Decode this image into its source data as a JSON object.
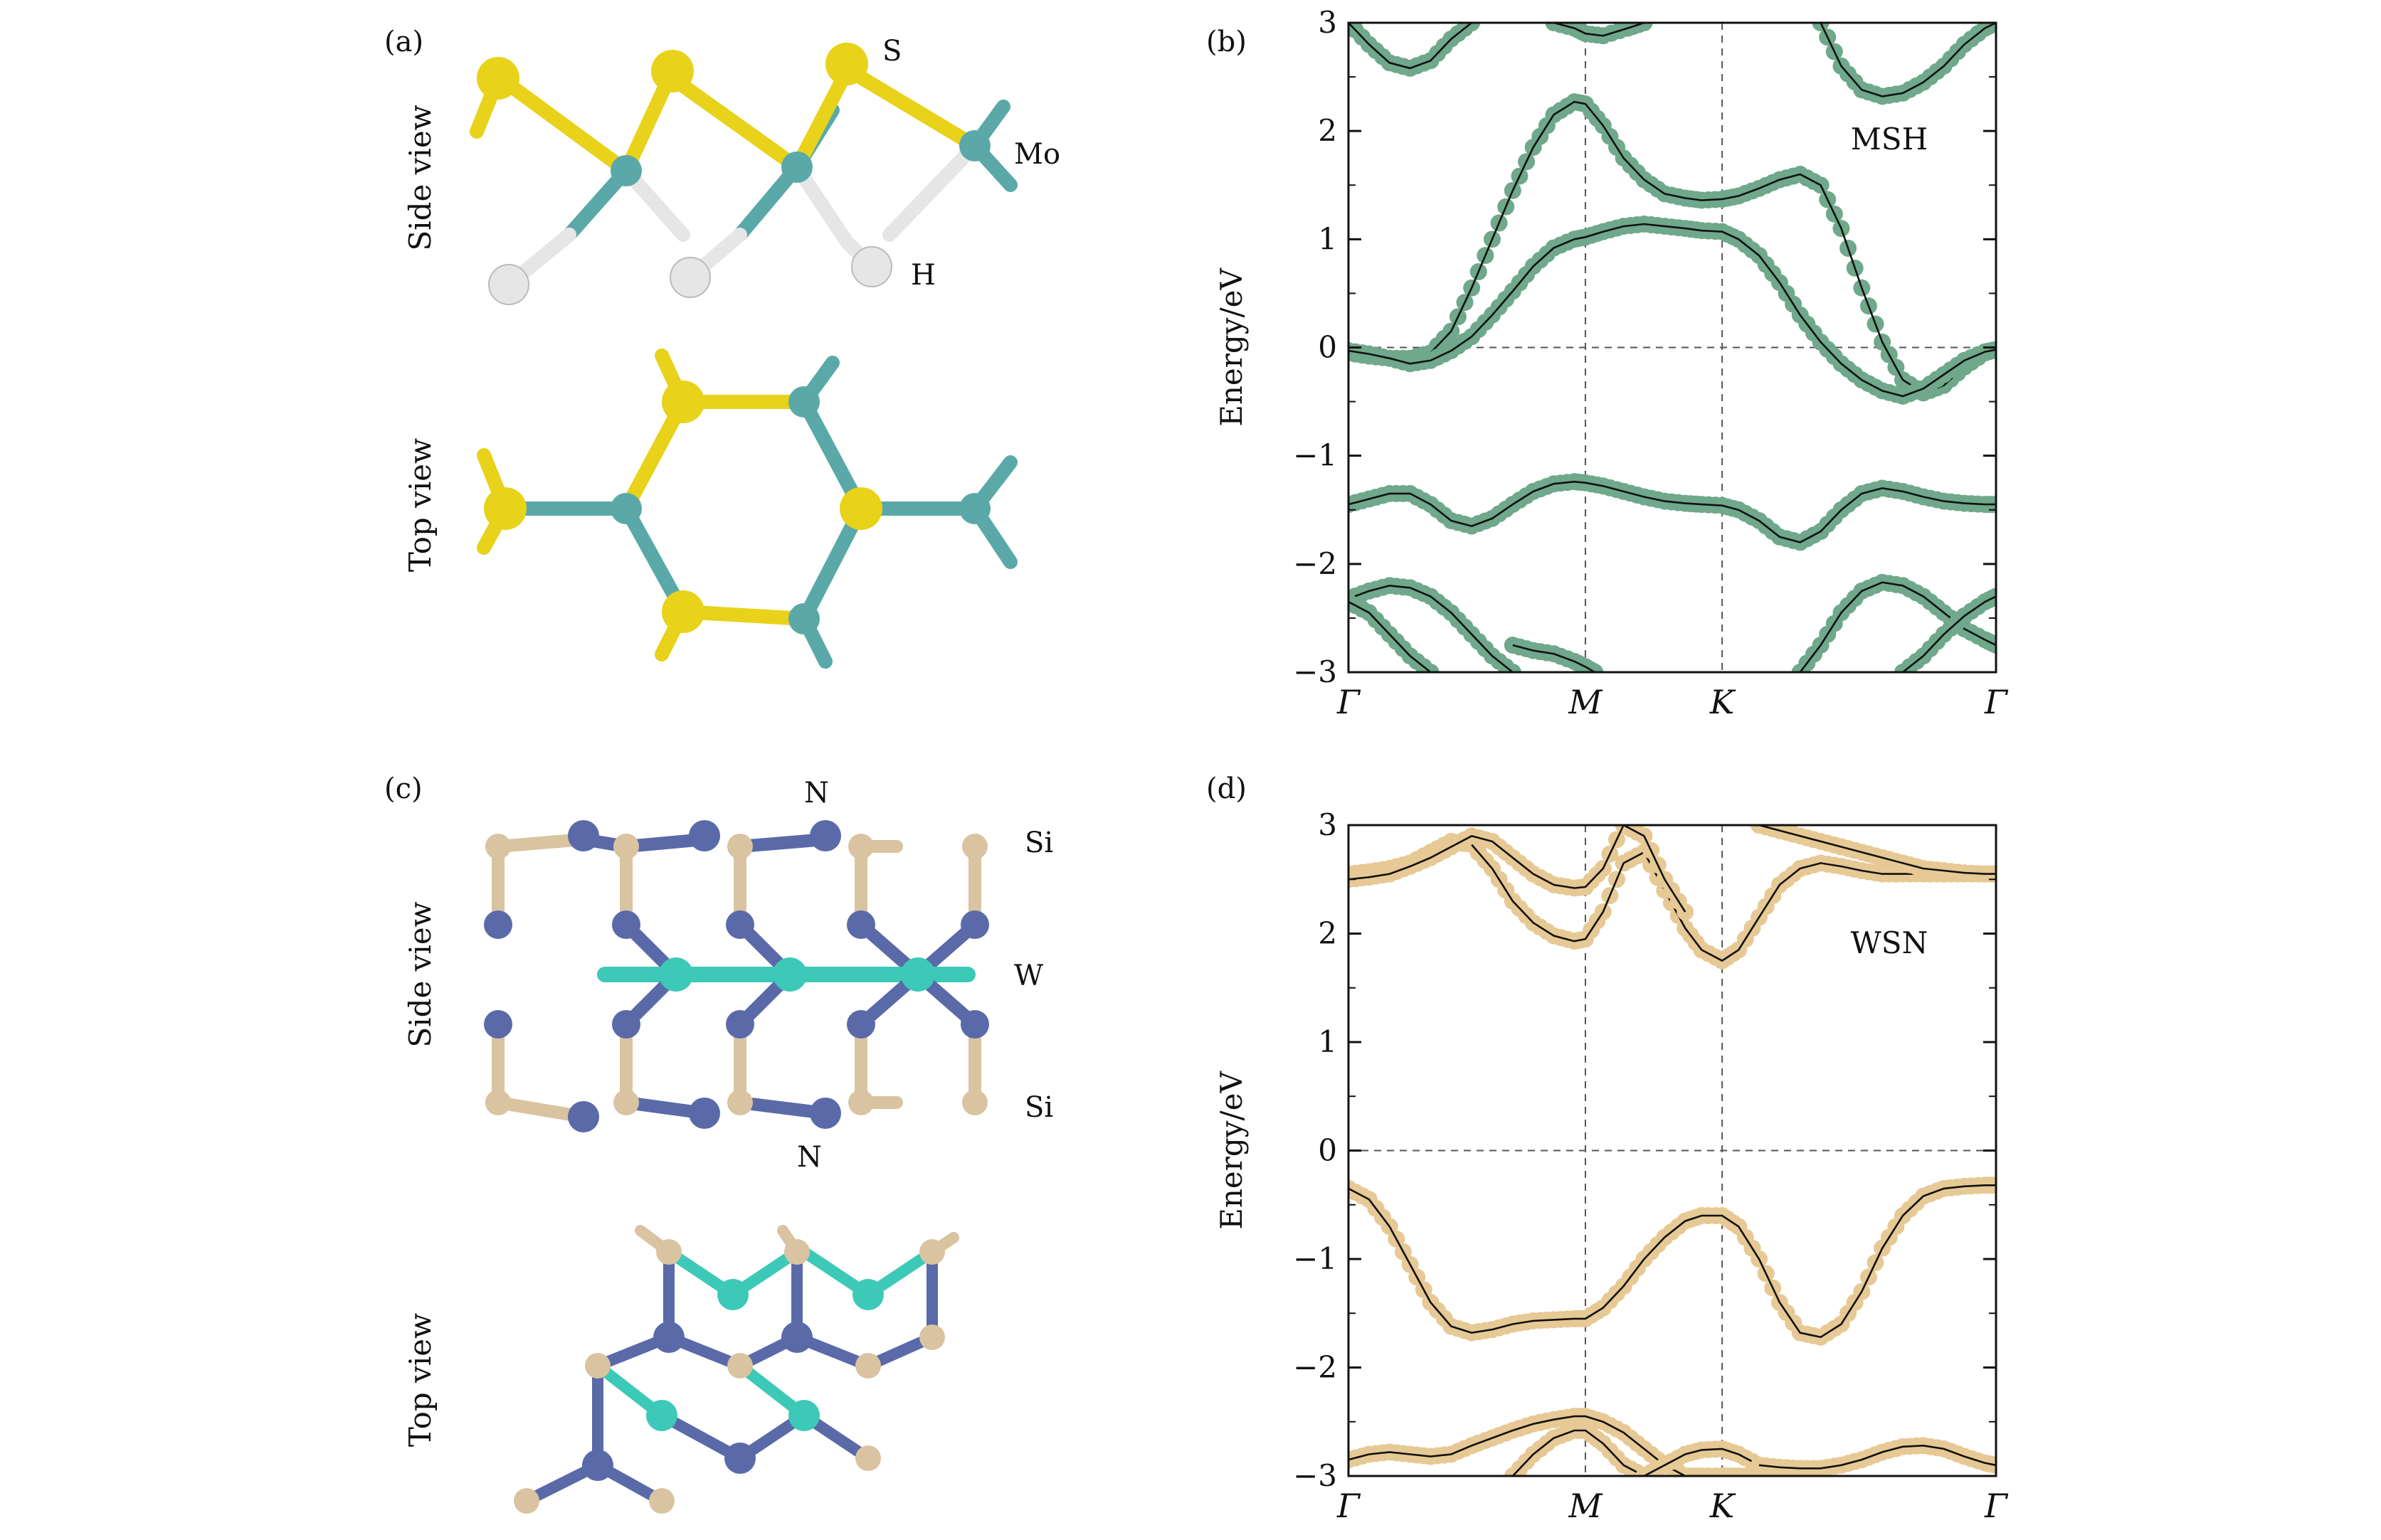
{
  "panels": {
    "a": {
      "label": "(a)",
      "side_view": "Side view",
      "top_view": "Top view",
      "atoms": {
        "S": "S",
        "Mo": "Mo",
        "H": "H"
      },
      "colors": {
        "S": "#e8d21a",
        "Mo": "#5aa9a8",
        "H": "#e6e6e6"
      }
    },
    "c": {
      "label": "(c)",
      "side_view": "Side view",
      "top_view": "Top view",
      "atoms": {
        "N_top": "N",
        "Si_top": "Si",
        "W": "W",
        "Si_bottom": "Si",
        "N_bottom": "N"
      },
      "colors": {
        "N": "#5a6aa8",
        "Si": "#d9c3a0",
        "W": "#3cc9b8"
      }
    }
  },
  "chart_data": [
    {
      "panel": "b",
      "label": "(b)",
      "type": "line",
      "plot_name": "MSH",
      "ylabel": "Energy/eV",
      "ylim": [
        -3,
        3
      ],
      "yticks": [
        "3",
        "2",
        "1",
        "0",
        "−1",
        "−2",
        "−3"
      ],
      "xticks": [
        {
          "label": "Γ",
          "x": 0.0
        },
        {
          "label": "M",
          "x": 0.577
        },
        {
          "label": "K",
          "x": 0.91
        },
        {
          "label": "Γ",
          "x": 1.577
        }
      ],
      "marker_color": "#6fa88a",
      "fermi_level": 0,
      "series": [
        {
          "x": [
            0,
            0.05,
            0.1,
            0.15,
            0.2,
            0.25,
            0.3
          ],
          "y": [
            3.0,
            2.8,
            2.63,
            2.58,
            2.65,
            2.85,
            3.0
          ]
        },
        {
          "x": [
            0.5,
            0.55,
            0.577,
            0.62,
            0.68,
            0.72
          ],
          "y": [
            3.0,
            2.95,
            2.9,
            2.88,
            2.95,
            3.0
          ]
        },
        {
          "x": [
            1.15,
            1.2,
            1.25,
            1.3,
            1.35,
            1.4,
            1.45,
            1.5,
            1.55,
            1.577
          ],
          "y": [
            3.0,
            2.6,
            2.38,
            2.32,
            2.35,
            2.45,
            2.6,
            2.8,
            2.95,
            3.0
          ]
        },
        {
          "x": [
            0,
            0.05,
            0.1,
            0.15,
            0.2,
            0.25,
            0.3,
            0.35,
            0.4,
            0.45,
            0.5,
            0.55,
            0.577,
            0.62,
            0.67,
            0.72,
            0.77,
            0.82,
            0.86,
            0.91,
            0.95,
            1.0,
            1.05,
            1.1,
            1.15,
            1.2,
            1.25,
            1.3,
            1.35,
            1.4,
            1.45,
            1.5,
            1.55,
            1.577
          ],
          "y": [
            -0.05,
            -0.08,
            -0.1,
            -0.1,
            -0.05,
            0.15,
            0.55,
            1.0,
            1.45,
            1.85,
            2.15,
            2.27,
            2.25,
            2.05,
            1.75,
            1.55,
            1.42,
            1.38,
            1.36,
            1.37,
            1.4,
            1.47,
            1.55,
            1.6,
            1.5,
            1.1,
            0.55,
            0.05,
            -0.3,
            -0.42,
            -0.35,
            -0.18,
            -0.05,
            -0.02
          ]
        },
        {
          "x": [
            0,
            0.05,
            0.1,
            0.15,
            0.2,
            0.25,
            0.3,
            0.35,
            0.4,
            0.45,
            0.5,
            0.55,
            0.577,
            0.62,
            0.67,
            0.72,
            0.77,
            0.82,
            0.86,
            0.91,
            0.95,
            1.0,
            1.05,
            1.1,
            1.15,
            1.2,
            1.25,
            1.3,
            1.35,
            1.4,
            1.45,
            1.5,
            1.55,
            1.577
          ],
          "y": [
            -0.03,
            -0.06,
            -0.1,
            -0.15,
            -0.12,
            -0.03,
            0.1,
            0.3,
            0.52,
            0.75,
            0.92,
            1.0,
            1.02,
            1.07,
            1.12,
            1.14,
            1.12,
            1.1,
            1.08,
            1.07,
            1.0,
            0.85,
            0.6,
            0.3,
            0.05,
            -0.15,
            -0.3,
            -0.4,
            -0.45,
            -0.38,
            -0.25,
            -0.12,
            -0.04,
            -0.02
          ]
        },
        {
          "x": [
            0,
            0.05,
            0.1,
            0.15,
            0.2,
            0.25,
            0.3,
            0.35,
            0.4,
            0.45,
            0.5,
            0.55,
            0.577,
            0.62,
            0.67,
            0.72,
            0.77,
            0.82,
            0.86,
            0.91,
            0.95,
            1.0,
            1.05,
            1.1,
            1.15,
            1.2,
            1.25,
            1.3,
            1.35,
            1.4,
            1.45,
            1.5,
            1.55,
            1.577
          ],
          "y": [
            -1.45,
            -1.4,
            -1.35,
            -1.35,
            -1.45,
            -1.6,
            -1.65,
            -1.58,
            -1.45,
            -1.33,
            -1.26,
            -1.24,
            -1.25,
            -1.28,
            -1.33,
            -1.38,
            -1.42,
            -1.44,
            -1.45,
            -1.46,
            -1.5,
            -1.6,
            -1.75,
            -1.8,
            -1.7,
            -1.5,
            -1.35,
            -1.3,
            -1.33,
            -1.38,
            -1.42,
            -1.44,
            -1.45,
            -1.45
          ]
        },
        {
          "x": [
            0,
            0.05,
            0.1,
            0.15,
            0.2,
            0.25,
            0.3,
            0.35,
            0.4
          ],
          "y": [
            -2.32,
            -2.25,
            -2.2,
            -2.22,
            -2.3,
            -2.45,
            -2.65,
            -2.85,
            -3.0
          ]
        },
        {
          "x": [
            0,
            0.05,
            0.1,
            0.15,
            0.2
          ],
          "y": [
            -2.35,
            -2.45,
            -2.65,
            -2.85,
            -3.0
          ]
        },
        {
          "x": [
            0.4,
            0.45,
            0.5,
            0.55,
            0.577,
            0.6
          ],
          "y": [
            -2.75,
            -2.8,
            -2.83,
            -2.9,
            -2.95,
            -3.0
          ]
        },
        {
          "x": [
            1.1,
            1.15,
            1.2,
            1.25,
            1.3,
            1.35,
            1.4,
            1.45,
            1.5,
            1.55,
            1.577
          ],
          "y": [
            -3.0,
            -2.75,
            -2.45,
            -2.25,
            -2.17,
            -2.2,
            -2.3,
            -2.45,
            -2.6,
            -2.7,
            -2.75
          ]
        },
        {
          "x": [
            1.35,
            1.4,
            1.45,
            1.5,
            1.55,
            1.577
          ],
          "y": [
            -3.0,
            -2.85,
            -2.65,
            -2.48,
            -2.35,
            -2.3
          ]
        }
      ]
    },
    {
      "panel": "d",
      "label": "(d)",
      "type": "line",
      "plot_name": "WSN",
      "ylabel": "Energy/eV",
      "ylim": [
        -3,
        3
      ],
      "yticks": [
        "3",
        "2",
        "1",
        "0",
        "−1",
        "−2",
        "−3"
      ],
      "xticks": [
        {
          "label": "Γ",
          "x": 0.0
        },
        {
          "label": "M",
          "x": 0.577
        },
        {
          "label": "K",
          "x": 0.91
        },
        {
          "label": "Γ",
          "x": 1.577
        }
      ],
      "marker_color": "#e6c994",
      "fermi_level": 0,
      "series": [
        {
          "x": [
            0,
            0.05,
            0.1,
            0.15,
            0.2,
            0.25,
            0.3,
            0.35,
            0.4,
            0.45,
            0.5,
            0.55,
            0.577,
            0.62,
            0.67,
            0.72,
            0.77,
            0.82,
            0.86,
            0.91,
            0.95,
            1.0,
            1.05,
            1.1,
            1.15,
            1.2,
            1.25,
            1.3,
            1.35,
            1.4,
            1.45,
            1.5,
            1.55,
            1.577
          ],
          "y": [
            2.55,
            2.57,
            2.6,
            2.65,
            2.75,
            2.85,
            2.82,
            2.6,
            2.3,
            2.1,
            1.98,
            1.93,
            1.95,
            2.2,
            2.65,
            2.75,
            2.4,
            2.05,
            1.85,
            1.75,
            1.85,
            2.15,
            2.45,
            2.6,
            2.65,
            2.62,
            2.58,
            2.55,
            2.55,
            2.55,
            2.55,
            2.55,
            2.55,
            2.55
          ]
        },
        {
          "x": [
            0,
            0.05,
            0.1,
            0.15,
            0.2,
            0.25,
            0.3,
            0.35,
            0.4,
            0.45,
            0.5,
            0.55,
            0.577,
            0.62,
            0.67,
            0.72,
            0.77,
            0.82
          ],
          "y": [
            2.5,
            2.52,
            2.55,
            2.62,
            2.7,
            2.8,
            2.9,
            2.85,
            2.7,
            2.55,
            2.45,
            2.42,
            2.43,
            2.6,
            3.0,
            2.9,
            2.5,
            2.2
          ]
        },
        {
          "x": [
            1.0,
            1.05,
            1.1,
            1.15,
            1.2,
            1.25,
            1.3,
            1.35,
            1.4,
            1.45,
            1.5,
            1.55,
            1.577
          ],
          "y": [
            3.0,
            2.95,
            2.9,
            2.85,
            2.8,
            2.75,
            2.7,
            2.65,
            2.6,
            2.58,
            2.56,
            2.55,
            2.55
          ]
        },
        {
          "x": [
            0,
            0.05,
            0.1,
            0.15,
            0.2,
            0.25,
            0.3,
            0.35,
            0.4,
            0.45,
            0.5,
            0.55,
            0.577,
            0.62,
            0.67,
            0.72,
            0.77,
            0.82,
            0.86,
            0.91,
            0.95,
            1.0,
            1.05,
            1.1,
            1.15,
            1.2,
            1.25,
            1.3,
            1.35,
            1.4,
            1.45,
            1.5,
            1.55,
            1.577
          ],
          "y": [
            -0.35,
            -0.45,
            -0.7,
            -1.05,
            -1.4,
            -1.62,
            -1.68,
            -1.65,
            -1.6,
            -1.57,
            -1.56,
            -1.55,
            -1.55,
            -1.45,
            -1.25,
            -1.0,
            -0.8,
            -0.65,
            -0.6,
            -0.6,
            -0.7,
            -1.0,
            -1.4,
            -1.68,
            -1.72,
            -1.6,
            -1.3,
            -0.9,
            -0.6,
            -0.42,
            -0.35,
            -0.33,
            -0.32,
            -0.32
          ]
        },
        {
          "x": [
            0,
            0.05,
            0.1,
            0.15,
            0.2,
            0.25,
            0.3,
            0.35,
            0.4,
            0.45,
            0.5,
            0.55,
            0.577,
            0.62,
            0.67,
            0.72,
            0.77,
            0.82,
            0.86,
            0.91,
            0.95,
            1.0
          ],
          "y": [
            -2.85,
            -2.8,
            -2.78,
            -2.8,
            -2.82,
            -2.8,
            -2.72,
            -2.65,
            -2.58,
            -2.52,
            -2.48,
            -2.45,
            -2.45,
            -2.5,
            -2.6,
            -2.75,
            -2.9,
            -3.0,
            -3.0,
            -3.0,
            -3.0,
            -3.0
          ]
        },
        {
          "x": [
            0.4,
            0.45,
            0.5,
            0.55,
            0.577,
            0.62,
            0.67,
            0.72
          ],
          "y": [
            -3.0,
            -2.8,
            -2.65,
            -2.58,
            -2.58,
            -2.7,
            -2.9,
            -3.0
          ]
        },
        {
          "x": [
            0.72,
            0.77,
            0.82,
            0.86,
            0.91,
            0.95,
            1.0,
            1.05
          ],
          "y": [
            -3.0,
            -2.9,
            -2.8,
            -2.76,
            -2.75,
            -2.8,
            -2.9,
            -3.0
          ]
        },
        {
          "x": [
            1.0,
            1.05,
            1.1,
            1.15,
            1.2,
            1.25,
            1.3,
            1.35,
            1.4,
            1.45,
            1.5,
            1.55,
            1.577
          ],
          "y": [
            -2.9,
            -2.92,
            -2.93,
            -2.93,
            -2.9,
            -2.85,
            -2.78,
            -2.73,
            -2.72,
            -2.75,
            -2.82,
            -2.88,
            -2.9
          ]
        }
      ]
    }
  ]
}
